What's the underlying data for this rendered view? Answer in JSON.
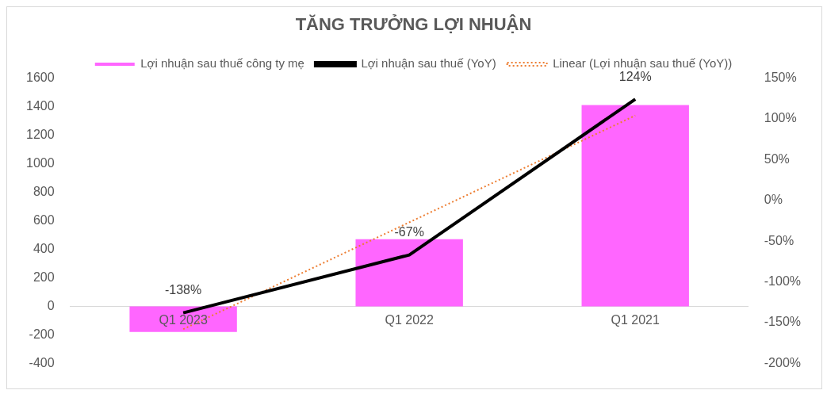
{
  "chart_data": {
    "type": "bar",
    "title": "TĂNG TRƯỞNG LỢI NHUẬN",
    "categories": [
      "Q1 2023",
      "Q1 2022",
      "Q1 2021"
    ],
    "series": [
      {
        "name": "Lợi nhuận sau thuế công ty mẹ",
        "color": "#ff66ff",
        "values": [
          -180,
          470,
          1410
        ]
      },
      {
        "name": "Lợi nhuận sau thuế (YoY)",
        "type": "line",
        "axis": "y2",
        "color": "#000000",
        "values": [
          -138,
          -67,
          124
        ],
        "value_labels": [
          "-138%",
          "-67%",
          "124%"
        ],
        "line_style": "solid"
      },
      {
        "name": "Linear (Lợi nhuận sau thuế (YoY))",
        "type": "line",
        "axis": "y2",
        "color": "#ed7d31",
        "values": [
          -158,
          -27,
          104
        ],
        "line_style": "dotted"
      }
    ],
    "ylim": [
      -400,
      1600
    ],
    "yticks": [
      -400,
      -200,
      0,
      200,
      400,
      600,
      800,
      1000,
      1200,
      1400,
      1600
    ],
    "y2lim": [
      -200,
      150
    ],
    "y2ticks": [
      {
        "value": -200,
        "label": "-200%"
      },
      {
        "value": -150,
        "label": "-150%"
      },
      {
        "value": -100,
        "label": "-100%"
      },
      {
        "value": -50,
        "label": "-50%"
      },
      {
        "value": 0,
        "label": "0%"
      },
      {
        "value": 50,
        "label": "50%"
      },
      {
        "value": 100,
        "label": "100%"
      },
      {
        "value": 150,
        "label": "150%"
      }
    ],
    "grid": false,
    "legend": "top",
    "marker": "none"
  }
}
